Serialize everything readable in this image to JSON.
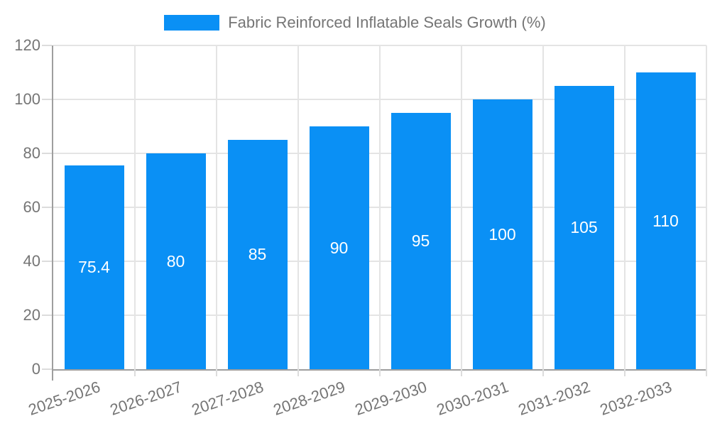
{
  "legend": {
    "label": "Fabric Reinforced Inflatable Seals Growth (%)"
  },
  "chart_data": {
    "type": "bar",
    "title": "Fabric Reinforced Inflatable Seals Growth (%)",
    "categories": [
      "2025-2026",
      "2026-2027",
      "2027-2028",
      "2028-2029",
      "2029-2030",
      "2030-2031",
      "2031-2032",
      "2032-2033"
    ],
    "values": [
      75.4,
      80,
      85,
      90,
      95,
      100,
      105,
      110
    ],
    "value_labels": [
      "75.4",
      "80",
      "85",
      "90",
      "95",
      "100",
      "105",
      "110"
    ],
    "xlabel": "",
    "ylabel": "",
    "ylim": [
      0,
      120
    ],
    "yticks": [
      0,
      20,
      40,
      60,
      80,
      100,
      120
    ],
    "grid": true,
    "legend_position": "top",
    "x_label_rotation_deg": -19
  },
  "colors": {
    "bar": "#0a90f5",
    "grid": "#e4e4e4",
    "axis": "#9e9e9e",
    "tick_text": "#757575",
    "bar_label": "#ffffff",
    "legend_text": "#757575"
  }
}
